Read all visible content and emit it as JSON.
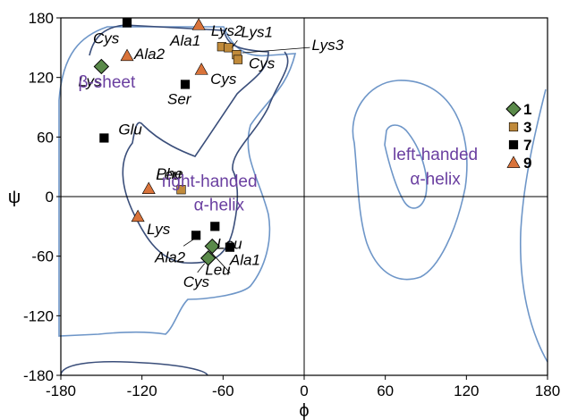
{
  "chart_data": {
    "type": "scatter",
    "title": "",
    "xlabel": "ϕ",
    "ylabel": "ψ",
    "xlim": [
      -180,
      180
    ],
    "ylim": [
      -180,
      180
    ],
    "x_ticks": [
      "-180",
      "-120",
      "-60",
      "0",
      "60",
      "120",
      "180"
    ],
    "y_ticks": [
      "180",
      "120",
      "60",
      "0",
      "-60",
      "-120",
      "-180"
    ],
    "grid": false,
    "reference_lines": {
      "x": 0,
      "y": 0
    },
    "legend_position": "right",
    "region_labels": [
      "β-sheet",
      "right-handed",
      "α-helix",
      "left-handed",
      "α-helix"
    ],
    "series": [
      {
        "name": "1",
        "marker": "diamond",
        "color": "#5a8a4a",
        "points": [
          {
            "x": -150,
            "y": 131,
            "label": "Lys"
          },
          {
            "x": -68,
            "y": -50,
            "label": "Leu"
          },
          {
            "x": -71,
            "y": -62,
            "label": "Cys"
          }
        ]
      },
      {
        "name": "3",
        "marker": "square",
        "color": "#c08a3a",
        "points": [
          {
            "x": -61,
            "y": 151,
            "label": "Lys2"
          },
          {
            "x": -56,
            "y": 150,
            "label": "Lys1"
          },
          {
            "x": -50,
            "y": 143,
            "label": "Lys3"
          },
          {
            "x": -49,
            "y": 138,
            "label": "Cys"
          },
          {
            "x": -91,
            "y": 7,
            "label": "Phe"
          }
        ]
      },
      {
        "name": "7",
        "marker": "square",
        "color": "#000000",
        "points": [
          {
            "x": -131,
            "y": 175,
            "label": "Cys"
          },
          {
            "x": -88,
            "y": 113,
            "label": "Ser"
          },
          {
            "x": -148,
            "y": 59,
            "label": "Glu"
          },
          {
            "x": -80,
            "y": -39,
            "label": "Ala2"
          },
          {
            "x": -66,
            "y": -30,
            "label": "Leu"
          },
          {
            "x": -55,
            "y": -51,
            "label": "Ala1"
          }
        ]
      },
      {
        "name": "9",
        "marker": "triangle",
        "color": "#d9733a",
        "points": [
          {
            "x": -78,
            "y": 173,
            "label": "Ala1"
          },
          {
            "x": -131,
            "y": 142,
            "label": "Ala2"
          },
          {
            "x": -76,
            "y": 128,
            "label": "Cys"
          },
          {
            "x": -115,
            "y": 8,
            "label": "Leu"
          },
          {
            "x": -123,
            "y": -20,
            "label": "Lys"
          }
        ]
      }
    ]
  }
}
